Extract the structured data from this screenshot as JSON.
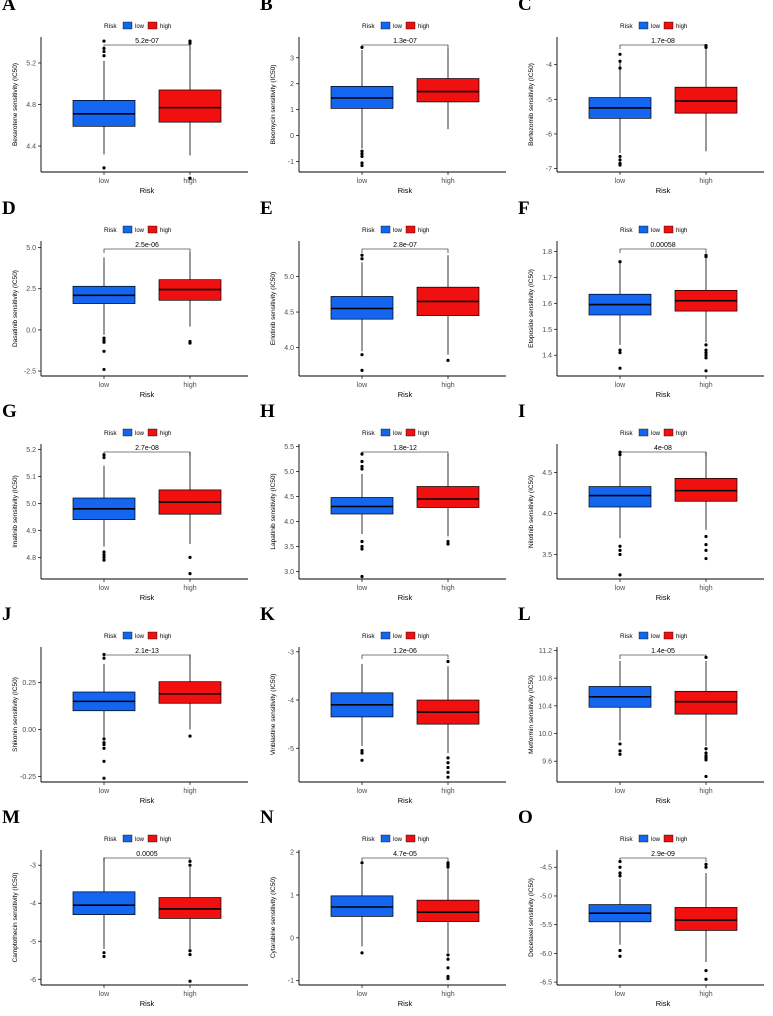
{
  "figure": {
    "legend_title": "Risk",
    "xlabel": "Risk",
    "colors": {
      "low": "#1466f0",
      "high": "#f01010",
      "axis": "#000000",
      "tick_text": "#4d4d4d"
    }
  },
  "chart_data": [
    {
      "letter": "A",
      "type": "boxplot",
      "ylabel": "Bexarotene sensitivity (IC50)",
      "pvalue": "5.2e-07",
      "legend": [
        "low",
        "high"
      ],
      "categories": [
        "low",
        "high"
      ],
      "xlabel": "Risk",
      "ylim": [
        4.15,
        5.45
      ],
      "ticks": [
        4.4,
        4.8,
        5.2
      ],
      "tick_labels": [
        "4.4",
        "4.8",
        "5.2"
      ],
      "boxes": [
        {
          "min": 4.32,
          "q1": 4.59,
          "median": 4.71,
          "q3": 4.84,
          "max": 5.22,
          "outliers": [
            4.19,
            5.27,
            5.31,
            5.34,
            5.41
          ]
        },
        {
          "min": 4.31,
          "q1": 4.63,
          "median": 4.77,
          "q3": 4.94,
          "max": 5.37,
          "outliers": [
            4.09,
            5.39,
            5.41
          ]
        }
      ]
    },
    {
      "letter": "B",
      "type": "boxplot",
      "ylabel": "Bleomycin sensitivity (IC50)",
      "pvalue": "1.3e-07",
      "legend": [
        "low",
        "high"
      ],
      "categories": [
        "low",
        "high"
      ],
      "xlabel": "Risk",
      "ylim": [
        -1.4,
        3.8
      ],
      "ticks": [
        -1,
        0,
        1,
        2,
        3
      ],
      "tick_labels": [
        "-1",
        "0",
        "1",
        "2",
        "3"
      ],
      "boxes": [
        {
          "min": -0.5,
          "q1": 1.05,
          "median": 1.45,
          "q3": 1.9,
          "max": 3.3,
          "outliers": [
            -0.6,
            -0.7,
            -0.8,
            -1.05,
            -1.15,
            3.4
          ]
        },
        {
          "min": 0.25,
          "q1": 1.3,
          "median": 1.7,
          "q3": 2.2,
          "max": 3.35,
          "outliers": []
        }
      ]
    },
    {
      "letter": "C",
      "type": "boxplot",
      "ylabel": "Bortezomib sensitivity (IC50)",
      "pvalue": "1.7e-08",
      "legend": [
        "low",
        "high"
      ],
      "categories": [
        "low",
        "high"
      ],
      "xlabel": "Risk",
      "ylim": [
        -7.1,
        -3.2
      ],
      "ticks": [
        -7,
        -6,
        -5,
        -4
      ],
      "tick_labels": [
        "-7",
        "-6",
        "-5",
        "-4"
      ],
      "boxes": [
        {
          "min": -6.55,
          "q1": -5.55,
          "median": -5.25,
          "q3": -4.95,
          "max": -3.9,
          "outliers": [
            -3.7,
            -3.9,
            -4.1,
            -6.65,
            -6.75,
            -6.85,
            -6.9
          ]
        },
        {
          "min": -6.5,
          "q1": -5.4,
          "median": -5.05,
          "q3": -4.65,
          "max": -3.55,
          "outliers": [
            -3.45,
            -3.5
          ]
        }
      ]
    },
    {
      "letter": "D",
      "type": "boxplot",
      "ylabel": "Dasatinib sensitivity (IC50)",
      "pvalue": "2.5e-06",
      "legend": [
        "low",
        "high"
      ],
      "categories": [
        "low",
        "high"
      ],
      "xlabel": "Risk",
      "ylim": [
        -2.8,
        5.4
      ],
      "ticks": [
        -2.5,
        0.0,
        2.5,
        5.0
      ],
      "tick_labels": [
        "-2.5",
        "0.0",
        "2.5",
        "5.0"
      ],
      "boxes": [
        {
          "min": -0.3,
          "q1": 1.6,
          "median": 2.1,
          "q3": 2.65,
          "max": 4.4,
          "outliers": [
            -0.5,
            -0.65,
            -0.75,
            -1.3,
            -2.4
          ]
        },
        {
          "min": 0.2,
          "q1": 1.8,
          "median": 2.45,
          "q3": 3.05,
          "max": 4.7,
          "outliers": [
            -0.7,
            -0.8
          ]
        }
      ]
    },
    {
      "letter": "E",
      "type": "boxplot",
      "ylabel": "Erlotinib sensitivity (IC50)",
      "pvalue": "2.8e-07",
      "legend": [
        "low",
        "high"
      ],
      "categories": [
        "low",
        "high"
      ],
      "xlabel": "Risk",
      "ylim": [
        3.6,
        5.5
      ],
      "ticks": [
        4.0,
        4.5,
        5.0
      ],
      "tick_labels": [
        "4.0",
        "4.5",
        "5.0"
      ],
      "boxes": [
        {
          "min": 3.95,
          "q1": 4.4,
          "median": 4.55,
          "q3": 4.72,
          "max": 5.2,
          "outliers": [
            3.9,
            3.68,
            5.25,
            5.3
          ]
        },
        {
          "min": 3.9,
          "q1": 4.45,
          "median": 4.65,
          "q3": 4.85,
          "max": 5.3,
          "outliers": [
            3.82
          ]
        }
      ]
    },
    {
      "letter": "F",
      "type": "boxplot",
      "ylabel": "Etoposide sensitivity (IC50)",
      "pvalue": "0.00058",
      "legend": [
        "low",
        "high"
      ],
      "categories": [
        "low",
        "high"
      ],
      "xlabel": "Risk",
      "ylim": [
        1.32,
        1.84
      ],
      "ticks": [
        1.4,
        1.5,
        1.6,
        1.7,
        1.8
      ],
      "tick_labels": [
        "1.4",
        "1.5",
        "1.6",
        "1.7",
        "1.8"
      ],
      "boxes": [
        {
          "min": 1.44,
          "q1": 1.555,
          "median": 1.595,
          "q3": 1.635,
          "max": 1.755,
          "outliers": [
            1.41,
            1.42,
            1.35,
            1.76
          ]
        },
        {
          "min": 1.45,
          "q1": 1.57,
          "median": 1.61,
          "q3": 1.65,
          "max": 1.775,
          "outliers": [
            1.44,
            1.42,
            1.41,
            1.4,
            1.39,
            1.34,
            1.78,
            1.785
          ]
        }
      ]
    },
    {
      "letter": "G",
      "type": "boxplot",
      "ylabel": "Imatinib sensitivity (IC50)",
      "pvalue": "2.7e-08",
      "legend": [
        "low",
        "high"
      ],
      "categories": [
        "low",
        "high"
      ],
      "xlabel": "Risk",
      "ylim": [
        4.72,
        5.22
      ],
      "ticks": [
        4.8,
        4.9,
        5.0,
        5.1,
        5.2
      ],
      "tick_labels": [
        "4.8",
        "4.9",
        "5.0",
        "5.1",
        "5.2"
      ],
      "boxes": [
        {
          "min": 4.84,
          "q1": 4.94,
          "median": 4.98,
          "q3": 5.02,
          "max": 5.14,
          "outliers": [
            4.82,
            4.81,
            4.8,
            4.79,
            5.17,
            5.18
          ]
        },
        {
          "min": 4.85,
          "q1": 4.96,
          "median": 5.005,
          "q3": 5.05,
          "max": 5.19,
          "outliers": [
            4.8,
            4.74
          ]
        }
      ]
    },
    {
      "letter": "H",
      "type": "boxplot",
      "ylabel": "Lapatinib sensitivity (IC50)",
      "pvalue": "1.8e-12",
      "legend": [
        "low",
        "high"
      ],
      "categories": [
        "low",
        "high"
      ],
      "xlabel": "Risk",
      "ylim": [
        2.85,
        5.55
      ],
      "ticks": [
        3.0,
        3.5,
        4.0,
        4.5,
        5.0,
        5.5
      ],
      "tick_labels": [
        "3.0",
        "3.5",
        "4.0",
        "4.5",
        "5.0",
        "5.5"
      ],
      "boxes": [
        {
          "min": 3.75,
          "q1": 4.15,
          "median": 4.3,
          "q3": 4.48,
          "max": 4.95,
          "outliers": [
            3.6,
            3.5,
            3.45,
            2.9,
            5.05,
            5.1,
            5.2,
            5.35
          ]
        },
        {
          "min": 3.7,
          "q1": 4.28,
          "median": 4.45,
          "q3": 4.7,
          "max": 5.35,
          "outliers": [
            3.6,
            3.55
          ]
        }
      ]
    },
    {
      "letter": "I",
      "type": "boxplot",
      "ylabel": "Nilotinib sensitivity (IC50)",
      "pvalue": "4e-08",
      "legend": [
        "low",
        "high"
      ],
      "categories": [
        "low",
        "high"
      ],
      "xlabel": "Risk",
      "ylim": [
        3.2,
        4.85
      ],
      "ticks": [
        3.5,
        4.0,
        4.5
      ],
      "tick_labels": [
        "3.5",
        "4.0",
        "4.5"
      ],
      "boxes": [
        {
          "min": 3.7,
          "q1": 4.08,
          "median": 4.22,
          "q3": 4.33,
          "max": 4.7,
          "outliers": [
            3.6,
            3.55,
            3.5,
            3.25,
            4.72,
            4.75
          ]
        },
        {
          "min": 3.8,
          "q1": 4.15,
          "median": 4.28,
          "q3": 4.43,
          "max": 4.75,
          "outliers": [
            3.72,
            3.62,
            3.55,
            3.45
          ]
        }
      ]
    },
    {
      "letter": "J",
      "type": "boxplot",
      "ylabel": "Shikonin sensitivity (IC50)",
      "pvalue": "2.1e-13",
      "legend": [
        "low",
        "high"
      ],
      "categories": [
        "low",
        "high"
      ],
      "xlabel": "Risk",
      "ylim": [
        -0.28,
        0.44
      ],
      "ticks": [
        -0.25,
        0.0,
        0.25
      ],
      "tick_labels": [
        "-0.25",
        "0.00",
        "0.25"
      ],
      "boxes": [
        {
          "min": -0.04,
          "q1": 0.1,
          "median": 0.15,
          "q3": 0.2,
          "max": 0.35,
          "outliers": [
            -0.05,
            -0.07,
            -0.08,
            -0.1,
            -0.17,
            -0.26,
            0.38,
            0.4
          ]
        },
        {
          "min": 0.0,
          "q1": 0.14,
          "median": 0.19,
          "q3": 0.255,
          "max": 0.4,
          "outliers": [
            -0.035
          ]
        }
      ]
    },
    {
      "letter": "K",
      "type": "boxplot",
      "ylabel": "Vinblastine sensitivity (IC50)",
      "pvalue": "1.2e-06",
      "legend": [
        "low",
        "high"
      ],
      "categories": [
        "low",
        "high"
      ],
      "xlabel": "Risk",
      "ylim": [
        -5.7,
        -2.9
      ],
      "ticks": [
        -5,
        -4,
        -3
      ],
      "tick_labels": [
        "-5",
        "-4",
        "-3"
      ],
      "boxes": [
        {
          "min": -4.95,
          "q1": -4.35,
          "median": -4.1,
          "q3": -3.85,
          "max": -3.25,
          "outliers": [
            -5.05,
            -5.1,
            -5.25
          ]
        },
        {
          "min": -5.1,
          "q1": -4.5,
          "median": -4.25,
          "q3": -4.0,
          "max": -3.3,
          "outliers": [
            -5.2,
            -5.3,
            -5.4,
            -5.5,
            -5.6,
            -3.2
          ]
        }
      ]
    },
    {
      "letter": "L",
      "type": "boxplot",
      "ylabel": "Metformin sensitivity (IC50)",
      "pvalue": "1.4e-05",
      "legend": [
        "low",
        "high"
      ],
      "categories": [
        "low",
        "high"
      ],
      "xlabel": "Risk",
      "ylim": [
        9.3,
        11.25
      ],
      "ticks": [
        9.6,
        10.0,
        10.4,
        10.8,
        11.2
      ],
      "tick_labels": [
        "9.6",
        "10.0",
        "10.4",
        "10.8",
        "11.2"
      ],
      "boxes": [
        {
          "min": 9.9,
          "q1": 10.38,
          "median": 10.53,
          "q3": 10.68,
          "max": 11.05,
          "outliers": [
            9.85,
            9.75,
            9.7
          ]
        },
        {
          "min": 9.82,
          "q1": 10.28,
          "median": 10.46,
          "q3": 10.61,
          "max": 11.05,
          "outliers": [
            9.78,
            9.72,
            9.68,
            9.65,
            9.62,
            9.38,
            11.1
          ]
        }
      ]
    },
    {
      "letter": "M",
      "type": "boxplot",
      "ylabel": "Camptothecin sensitivity (IC50)",
      "pvalue": "0.0005",
      "legend": [
        "low",
        "high"
      ],
      "categories": [
        "low",
        "high"
      ],
      "xlabel": "Risk",
      "ylim": [
        -6.15,
        -2.6
      ],
      "ticks": [
        -6,
        -5,
        -4,
        -3
      ],
      "tick_labels": [
        "-6",
        "-5",
        "-4",
        "-3"
      ],
      "boxes": [
        {
          "min": -5.2,
          "q1": -4.3,
          "median": -4.05,
          "q3": -3.7,
          "max": -2.8,
          "outliers": [
            -5.3,
            -5.4
          ]
        },
        {
          "min": -5.2,
          "q1": -4.4,
          "median": -4.15,
          "q3": -3.85,
          "max": -3.05,
          "outliers": [
            -5.25,
            -5.35,
            -6.05,
            -2.9,
            -3.0
          ]
        }
      ]
    },
    {
      "letter": "N",
      "type": "boxplot",
      "ylabel": "Cytarabine sensitivity (IC50)",
      "pvalue": "4.7e-05",
      "legend": [
        "low",
        "high"
      ],
      "categories": [
        "low",
        "high"
      ],
      "xlabel": "Risk",
      "ylim": [
        -1.1,
        2.05
      ],
      "ticks": [
        -1,
        0,
        1,
        2
      ],
      "tick_labels": [
        "-1",
        "0",
        "1",
        "2"
      ],
      "boxes": [
        {
          "min": -0.2,
          "q1": 0.5,
          "median": 0.72,
          "q3": 0.98,
          "max": 1.7,
          "outliers": [
            -0.35,
            1.75
          ]
        },
        {
          "min": -0.35,
          "q1": 0.38,
          "median": 0.6,
          "q3": 0.88,
          "max": 1.6,
          "outliers": [
            -0.4,
            -0.5,
            -0.7,
            -0.9,
            -0.95,
            1.65,
            1.7,
            1.75
          ]
        }
      ]
    },
    {
      "letter": "O",
      "type": "boxplot",
      "ylabel": "Docetaxel sensitivity (IC50)",
      "pvalue": "2.9e-09",
      "legend": [
        "low",
        "high"
      ],
      "categories": [
        "low",
        "high"
      ],
      "xlabel": "Risk",
      "ylim": [
        -6.55,
        -4.2
      ],
      "ticks": [
        -6.5,
        -6.0,
        -5.5,
        -5.0,
        -4.5
      ],
      "tick_labels": [
        "-6.5",
        "-6.0",
        "-5.5",
        "-5.0",
        "-4.5"
      ],
      "boxes": [
        {
          "min": -5.85,
          "q1": -5.45,
          "median": -5.3,
          "q3": -5.15,
          "max": -4.7,
          "outliers": [
            -5.95,
            -6.05,
            -4.4,
            -4.5,
            -4.6,
            -4.65
          ]
        },
        {
          "min": -6.15,
          "q1": -5.6,
          "median": -5.42,
          "q3": -5.2,
          "max": -4.6,
          "outliers": [
            -6.3,
            -6.45,
            -4.5,
            -4.45
          ]
        }
      ]
    }
  ]
}
